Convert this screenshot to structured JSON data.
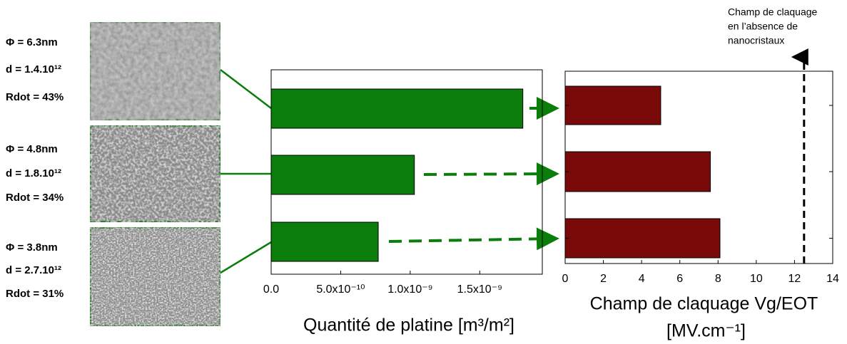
{
  "samples": [
    {
      "phi": "Φ = 6.3nm",
      "d": "d = 1.4.10¹²",
      "rdot": "Rdot = 43%"
    },
    {
      "phi": "Φ = 4.8nm",
      "d": "d = 1.8.10¹²",
      "rdot": "Rdot = 34%"
    },
    {
      "phi": "Φ = 3.8nm",
      "d": "d = 2.7.10¹²",
      "rdot": "Rdot = 31%"
    }
  ],
  "chart_data": [
    {
      "type": "hbar",
      "xlabel": "Quantité de platine [m³/m²]",
      "categories": [
        null,
        null,
        null
      ],
      "values": [
        1.81e-09,
        1.03e-09,
        7.7e-10
      ],
      "color": "#0b7d0b",
      "xlim": [
        0,
        1.95e-09
      ],
      "xticks": [
        {
          "value": 0,
          "label": "0.0"
        },
        {
          "value": 5e-10,
          "label": "5.0x10⁻¹⁰"
        },
        {
          "value": 1e-09,
          "label": "1.0x10⁻⁹"
        },
        {
          "value": 1.5e-09,
          "label": "1.5x10⁻⁹"
        }
      ]
    },
    {
      "type": "hbar",
      "xlabel": "Champ de claquage Vg/EOT",
      "xlabel_unit": "[MV.cm⁻¹]",
      "categories": [
        null,
        null,
        null
      ],
      "values": [
        5.0,
        7.6,
        8.1
      ],
      "color": "#7a0a0a",
      "xlim": [
        0,
        14
      ],
      "xticks": [
        0,
        2,
        4,
        6,
        8,
        10,
        12,
        14
      ],
      "reference_x": 12.5,
      "annotation": [
        "Champ de claquage",
        "en l’absence de",
        "nanocristaux"
      ]
    }
  ]
}
